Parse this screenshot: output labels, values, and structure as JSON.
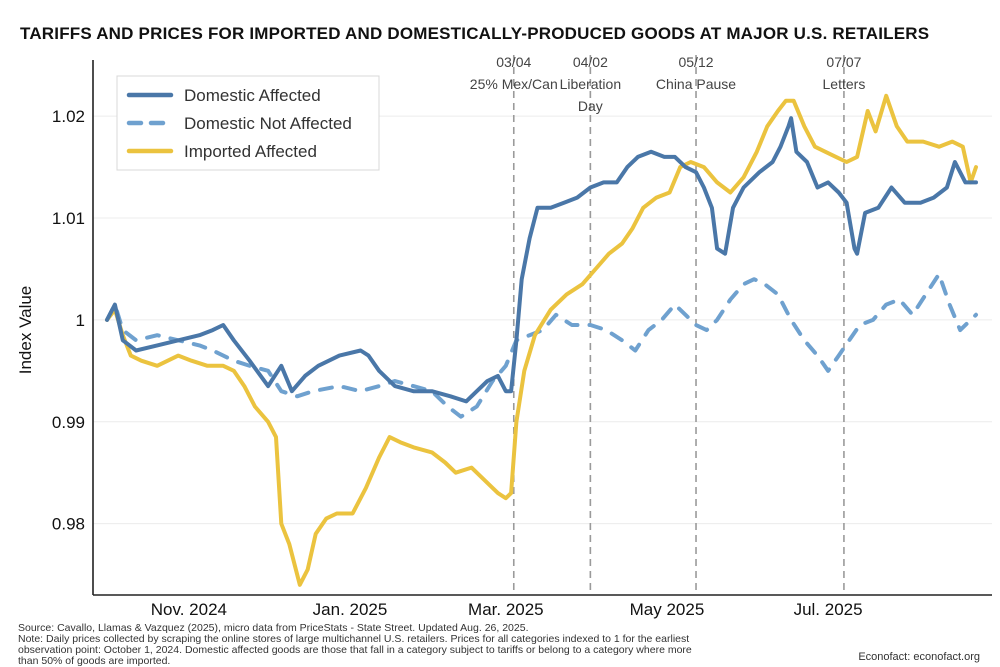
{
  "chart_data": {
    "type": "line",
    "title": "TARIFFS AND PRICES FOR IMPORTED AND DOMESTICALLY-PRODUCED GOODS AT MAJOR U.S. RETAILERS",
    "xlabel": "",
    "ylabel": "Index Value",
    "x_range": [
      "2024-10-01",
      "2025-08-26"
    ],
    "ylim": [
      0.973,
      1.026
    ],
    "y_ticks": [
      0.98,
      0.99,
      1.0,
      1.01,
      1.02
    ],
    "y_tick_labels": [
      "0.98",
      "0.99",
      "1",
      "1.01",
      "1.02"
    ],
    "x_ticks": [
      {
        "date": "2024-11-01",
        "label": "Nov. 2024"
      },
      {
        "date": "2025-01-01",
        "label": "Jan. 2025"
      },
      {
        "date": "2025-03-01",
        "label": "Mar. 2025"
      },
      {
        "date": "2025-05-01",
        "label": "May 2025"
      },
      {
        "date": "2025-07-01",
        "label": "Jul. 2025"
      }
    ],
    "grid": "horizontal",
    "legend_position": "top-left",
    "annotations": [
      {
        "date": "2025-03-04",
        "lines": [
          "03/04",
          "25% Mex/Can"
        ]
      },
      {
        "date": "2025-04-02",
        "lines": [
          "04/02",
          "Liberation",
          "Day"
        ]
      },
      {
        "date": "2025-05-12",
        "lines": [
          "05/12",
          "China Pause"
        ]
      },
      {
        "date": "2025-07-07",
        "lines": [
          "07/07",
          "Letters"
        ]
      }
    ],
    "series": [
      {
        "name": "Domestic Affected",
        "color": "#4a77a8",
        "style": "solid",
        "points": [
          [
            "2024-10-01",
            1.0
          ],
          [
            "2024-10-04",
            1.0015
          ],
          [
            "2024-10-07",
            0.998
          ],
          [
            "2024-10-12",
            0.997
          ],
          [
            "2024-10-20",
            0.9975
          ],
          [
            "2024-10-28",
            0.998
          ],
          [
            "2024-11-05",
            0.9985
          ],
          [
            "2024-11-10",
            0.999
          ],
          [
            "2024-11-14",
            0.9995
          ],
          [
            "2024-11-18",
            0.998
          ],
          [
            "2024-11-24",
            0.996
          ],
          [
            "2024-12-01",
            0.9935
          ],
          [
            "2024-12-06",
            0.9955
          ],
          [
            "2024-12-10",
            0.993
          ],
          [
            "2024-12-15",
            0.9945
          ],
          [
            "2024-12-20",
            0.9955
          ],
          [
            "2024-12-28",
            0.9965
          ],
          [
            "2025-01-05",
            0.997
          ],
          [
            "2025-01-08",
            0.9965
          ],
          [
            "2025-01-12",
            0.995
          ],
          [
            "2025-01-18",
            0.9935
          ],
          [
            "2025-01-25",
            0.993
          ],
          [
            "2025-02-01",
            0.993
          ],
          [
            "2025-02-08",
            0.9925
          ],
          [
            "2025-02-14",
            0.992
          ],
          [
            "2025-02-18",
            0.993
          ],
          [
            "2025-02-22",
            0.994
          ],
          [
            "2025-02-26",
            0.9945
          ],
          [
            "2025-03-01",
            0.993
          ],
          [
            "2025-03-03",
            0.993
          ],
          [
            "2025-03-05",
            0.998
          ],
          [
            "2025-03-07",
            1.004
          ],
          [
            "2025-03-10",
            1.008
          ],
          [
            "2025-03-13",
            1.011
          ],
          [
            "2025-03-18",
            1.011
          ],
          [
            "2025-03-23",
            1.0115
          ],
          [
            "2025-03-28",
            1.012
          ],
          [
            "2025-04-02",
            1.013
          ],
          [
            "2025-04-07",
            1.0135
          ],
          [
            "2025-04-12",
            1.0135
          ],
          [
            "2025-04-16",
            1.015
          ],
          [
            "2025-04-20",
            1.016
          ],
          [
            "2025-04-25",
            1.0165
          ],
          [
            "2025-04-30",
            1.016
          ],
          [
            "2025-05-04",
            1.016
          ],
          [
            "2025-05-08",
            1.015
          ],
          [
            "2025-05-12",
            1.0145
          ],
          [
            "2025-05-15",
            1.013
          ],
          [
            "2025-05-18",
            1.011
          ],
          [
            "2025-05-20",
            1.007
          ],
          [
            "2025-05-23",
            1.0065
          ],
          [
            "2025-05-26",
            1.011
          ],
          [
            "2025-05-30",
            1.013
          ],
          [
            "2025-06-05",
            1.0145
          ],
          [
            "2025-06-10",
            1.0155
          ],
          [
            "2025-06-13",
            1.017
          ],
          [
            "2025-06-16",
            1.019
          ],
          [
            "2025-06-17",
            1.0198
          ],
          [
            "2025-06-19",
            1.0165
          ],
          [
            "2025-06-23",
            1.0155
          ],
          [
            "2025-06-27",
            1.013
          ],
          [
            "2025-07-01",
            1.0135
          ],
          [
            "2025-07-05",
            1.0125
          ],
          [
            "2025-07-08",
            1.0115
          ],
          [
            "2025-07-11",
            1.007
          ],
          [
            "2025-07-12",
            1.0065
          ],
          [
            "2025-07-15",
            1.0105
          ],
          [
            "2025-07-20",
            1.011
          ],
          [
            "2025-07-25",
            1.013
          ],
          [
            "2025-07-30",
            1.0115
          ],
          [
            "2025-08-05",
            1.0115
          ],
          [
            "2025-08-10",
            1.012
          ],
          [
            "2025-08-15",
            1.013
          ],
          [
            "2025-08-18",
            1.0155
          ],
          [
            "2025-08-22",
            1.0135
          ],
          [
            "2025-08-26",
            1.0135
          ]
        ]
      },
      {
        "name": "Domestic Not Affected",
        "color": "#6fa1cf",
        "style": "dashed",
        "points": [
          [
            "2024-10-01",
            1.0
          ],
          [
            "2024-10-04",
            1.0015
          ],
          [
            "2024-10-07",
            0.999
          ],
          [
            "2024-10-12",
            0.998
          ],
          [
            "2024-10-20",
            0.9985
          ],
          [
            "2024-10-28",
            0.998
          ],
          [
            "2024-11-05",
            0.9975
          ],
          [
            "2024-11-10",
            0.997
          ],
          [
            "2024-11-18",
            0.996
          ],
          [
            "2024-11-24",
            0.9955
          ],
          [
            "2024-12-01",
            0.995
          ],
          [
            "2024-12-06",
            0.993
          ],
          [
            "2024-12-12",
            0.9925
          ],
          [
            "2024-12-18",
            0.993
          ],
          [
            "2024-12-28",
            0.9935
          ],
          [
            "2025-01-05",
            0.993
          ],
          [
            "2025-01-12",
            0.9935
          ],
          [
            "2025-01-18",
            0.994
          ],
          [
            "2025-01-25",
            0.9935
          ],
          [
            "2025-02-01",
            0.993
          ],
          [
            "2025-02-07",
            0.9915
          ],
          [
            "2025-02-12",
            0.9905
          ],
          [
            "2025-02-18",
            0.9915
          ],
          [
            "2025-02-24",
            0.994
          ],
          [
            "2025-03-01",
            0.9955
          ],
          [
            "2025-03-05",
            0.998
          ],
          [
            "2025-03-10",
            0.9985
          ],
          [
            "2025-03-15",
            0.999
          ],
          [
            "2025-03-20",
            1.0005
          ],
          [
            "2025-03-26",
            0.9995
          ],
          [
            "2025-04-02",
            0.9995
          ],
          [
            "2025-04-08",
            0.999
          ],
          [
            "2025-04-14",
            0.998
          ],
          [
            "2025-04-19",
            0.997
          ],
          [
            "2025-04-24",
            0.999
          ],
          [
            "2025-04-29",
            1.0
          ],
          [
            "2025-05-04",
            1.0015
          ],
          [
            "2025-05-08",
            1.0005
          ],
          [
            "2025-05-12",
            0.9995
          ],
          [
            "2025-05-16",
            0.999
          ],
          [
            "2025-05-20",
            1.0
          ],
          [
            "2025-05-25",
            1.002
          ],
          [
            "2025-05-30",
            1.0035
          ],
          [
            "2025-06-03",
            1.004
          ],
          [
            "2025-06-07",
            1.0035
          ],
          [
            "2025-06-12",
            1.0025
          ],
          [
            "2025-06-17",
            1.0
          ],
          [
            "2025-06-22",
            0.998
          ],
          [
            "2025-06-27",
            0.9965
          ],
          [
            "2025-07-01",
            0.995
          ],
          [
            "2025-07-05",
            0.9965
          ],
          [
            "2025-07-09",
            0.998
          ],
          [
            "2025-07-13",
            0.9995
          ],
          [
            "2025-07-18",
            1.0
          ],
          [
            "2025-07-23",
            1.0015
          ],
          [
            "2025-07-28",
            1.002
          ],
          [
            "2025-08-02",
            1.0005
          ],
          [
            "2025-08-07",
            1.0025
          ],
          [
            "2025-08-12",
            1.0045
          ],
          [
            "2025-08-16",
            1.0015
          ],
          [
            "2025-08-20",
            0.999
          ],
          [
            "2025-08-26",
            1.0005
          ]
        ]
      },
      {
        "name": "Imported Affected",
        "color": "#ebc33f",
        "style": "solid",
        "points": [
          [
            "2024-10-01",
            1.0
          ],
          [
            "2024-10-04",
            1.001
          ],
          [
            "2024-10-07",
            0.9985
          ],
          [
            "2024-10-10",
            0.9965
          ],
          [
            "2024-10-14",
            0.996
          ],
          [
            "2024-10-20",
            0.9955
          ],
          [
            "2024-10-28",
            0.9965
          ],
          [
            "2024-11-02",
            0.996
          ],
          [
            "2024-11-08",
            0.9955
          ],
          [
            "2024-11-14",
            0.9955
          ],
          [
            "2024-11-18",
            0.995
          ],
          [
            "2024-11-22",
            0.9935
          ],
          [
            "2024-11-26",
            0.9915
          ],
          [
            "2024-12-01",
            0.99
          ],
          [
            "2024-12-04",
            0.9885
          ],
          [
            "2024-12-06",
            0.98
          ],
          [
            "2024-12-09",
            0.978
          ],
          [
            "2024-12-13",
            0.974
          ],
          [
            "2024-12-16",
            0.9755
          ],
          [
            "2024-12-19",
            0.979
          ],
          [
            "2024-12-23",
            0.9805
          ],
          [
            "2024-12-27",
            0.981
          ],
          [
            "2025-01-02",
            0.981
          ],
          [
            "2025-01-07",
            0.9835
          ],
          [
            "2025-01-12",
            0.9865
          ],
          [
            "2025-01-16",
            0.9885
          ],
          [
            "2025-01-20",
            0.988
          ],
          [
            "2025-01-25",
            0.9875
          ],
          [
            "2025-02-01",
            0.987
          ],
          [
            "2025-02-06",
            0.986
          ],
          [
            "2025-02-10",
            0.985
          ],
          [
            "2025-02-16",
            0.9855
          ],
          [
            "2025-02-22",
            0.984
          ],
          [
            "2025-02-26",
            0.983
          ],
          [
            "2025-03-01",
            0.9825
          ],
          [
            "2025-03-03",
            0.983
          ],
          [
            "2025-03-05",
            0.99
          ],
          [
            "2025-03-08",
            0.995
          ],
          [
            "2025-03-12",
            0.9985
          ],
          [
            "2025-03-18",
            1.001
          ],
          [
            "2025-03-24",
            1.0025
          ],
          [
            "2025-03-30",
            1.0035
          ],
          [
            "2025-04-04",
            1.005
          ],
          [
            "2025-04-09",
            1.0065
          ],
          [
            "2025-04-14",
            1.0075
          ],
          [
            "2025-04-18",
            1.009
          ],
          [
            "2025-04-22",
            1.011
          ],
          [
            "2025-04-27",
            1.012
          ],
          [
            "2025-05-02",
            1.0125
          ],
          [
            "2025-05-06",
            1.015
          ],
          [
            "2025-05-10",
            1.0155
          ],
          [
            "2025-05-15",
            1.015
          ],
          [
            "2025-05-20",
            1.0135
          ],
          [
            "2025-05-25",
            1.0125
          ],
          [
            "2025-05-30",
            1.014
          ],
          [
            "2025-06-04",
            1.0165
          ],
          [
            "2025-06-08",
            1.019
          ],
          [
            "2025-06-12",
            1.0205
          ],
          [
            "2025-06-15",
            1.0215
          ],
          [
            "2025-06-18",
            1.0215
          ],
          [
            "2025-06-22",
            1.019
          ],
          [
            "2025-06-26",
            1.017
          ],
          [
            "2025-06-30",
            1.0165
          ],
          [
            "2025-07-04",
            1.016
          ],
          [
            "2025-07-08",
            1.0155
          ],
          [
            "2025-07-12",
            1.016
          ],
          [
            "2025-07-16",
            1.0205
          ],
          [
            "2025-07-19",
            1.0185
          ],
          [
            "2025-07-23",
            1.022
          ],
          [
            "2025-07-27",
            1.019
          ],
          [
            "2025-07-31",
            1.0175
          ],
          [
            "2025-08-06",
            1.0175
          ],
          [
            "2025-08-12",
            1.017
          ],
          [
            "2025-08-17",
            1.0175
          ],
          [
            "2025-08-21",
            1.017
          ],
          [
            "2025-08-24",
            1.0135
          ],
          [
            "2025-08-26",
            1.015
          ]
        ]
      }
    ]
  },
  "footnote": {
    "source": "Source: Cavallo, Llamas & Vazquez (2025), micro data from PriceStats - State Street. Updated Aug. 26, 2025.",
    "note_line1": "Note: Daily prices collected by scraping the online stores of large multichannel U.S. retailers. Prices for all categories indexed to 1 for the earliest",
    "note_line2": "observation point: October 1, 2024. Domestic affected goods are those that fall in a category subject to tariffs or belong to a category where more",
    "note_line3": "than 50% of goods are imported."
  },
  "credit": "Econofact: econofact.org"
}
